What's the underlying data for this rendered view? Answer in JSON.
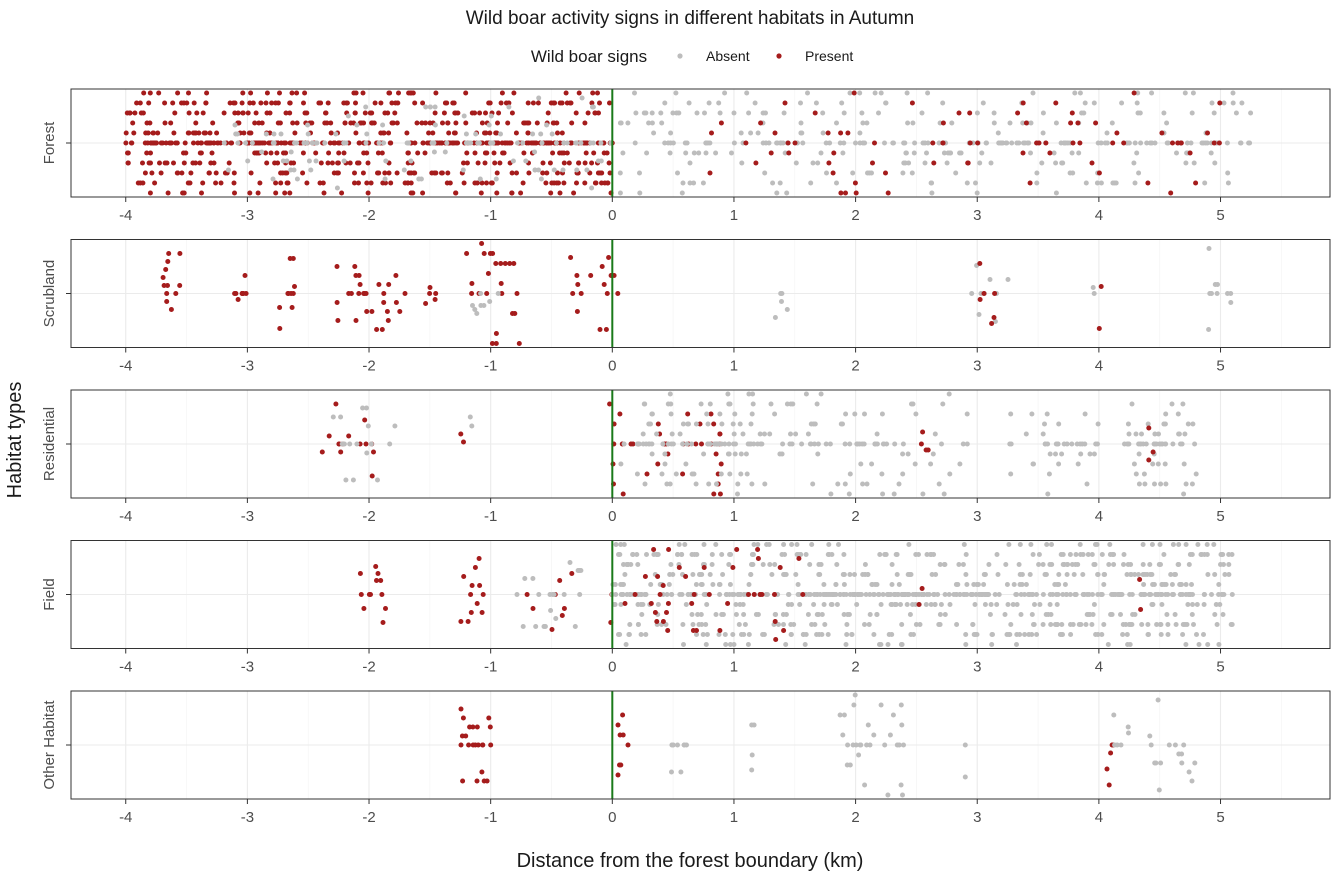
{
  "chart_data": {
    "type": "scatter",
    "subtype": "facetted beeswarm / jittered strip plot",
    "title": "Wild boar activity signs in different habitats in Autumn",
    "xlabel": "Distance from the forest boundary (km)",
    "ylabel": "Habitat types",
    "xlim": [
      -4.45,
      5.9
    ],
    "x_ticks": [
      -4,
      -3,
      -2,
      -1,
      0,
      1,
      2,
      3,
      4,
      5
    ],
    "x_tick_labels": [
      "-4",
      "-3",
      "-2",
      "-1",
      "0",
      "1",
      "2",
      "3",
      "4",
      "5"
    ],
    "reference_line": {
      "x": 0,
      "color": "#1a7a1a"
    },
    "grid": true,
    "legend": {
      "title": "Wild boar signs",
      "position": "top",
      "entries": [
        {
          "label": "Absent",
          "color": "#bdbdbd"
        },
        {
          "label": "Present",
          "color": "#a51c1c"
        }
      ]
    },
    "facets": [
      {
        "label": "Forest",
        "groups": [
          {
            "status": "Present",
            "x_range": [
              -4.0,
              0.0
            ],
            "count": 700,
            "spread": 0.5
          },
          {
            "status": "Absent",
            "x_range": [
              -3.2,
              0.0
            ],
            "count": 120,
            "spread": 0.45
          },
          {
            "status": "Absent",
            "x_range": [
              0.05,
              5.25
            ],
            "count": 320,
            "spread": 0.5
          },
          {
            "status": "Present",
            "x_range": [
              0.8,
              5.0
            ],
            "count": 75,
            "spread": 0.5
          }
        ]
      },
      {
        "label": "Scrubland",
        "groups": [
          {
            "status": "Present",
            "x_range": [
              -3.7,
              -3.55
            ],
            "count": 12,
            "spread": 0.4
          },
          {
            "status": "Present",
            "x_range": [
              -3.12,
              -2.98
            ],
            "count": 8,
            "spread": 0.3
          },
          {
            "status": "Present",
            "x_range": [
              -2.75,
              -2.6
            ],
            "count": 10,
            "spread": 0.35
          },
          {
            "status": "Present",
            "x_range": [
              -2.3,
              -1.7
            ],
            "count": 28,
            "spread": 0.45
          },
          {
            "status": "Present",
            "x_range": [
              -1.55,
              -1.45
            ],
            "count": 5,
            "spread": 0.1
          },
          {
            "status": "Present",
            "x_range": [
              -1.2,
              -0.75
            ],
            "count": 24,
            "spread": 0.5
          },
          {
            "status": "Absent",
            "x_range": [
              -1.2,
              -0.9
            ],
            "count": 8,
            "spread": 0.2
          },
          {
            "status": "Present",
            "x_range": [
              -0.38,
              0.05
            ],
            "count": 16,
            "spread": 0.45
          },
          {
            "status": "Absent",
            "x_range": [
              1.33,
              1.45
            ],
            "count": 5,
            "spread": 0.4
          },
          {
            "status": "Absent",
            "x_range": [
              2.95,
              3.3
            ],
            "count": 9,
            "spread": 0.35
          },
          {
            "status": "Present",
            "x_range": [
              3.02,
              3.15
            ],
            "count": 6,
            "spread": 0.3
          },
          {
            "status": "Present",
            "x_range": [
              4.0,
              4.02
            ],
            "count": 2,
            "spread": 0.35
          },
          {
            "status": "Absent",
            "x_range": [
              3.95,
              4.0
            ],
            "count": 2,
            "spread": 0.3
          },
          {
            "status": "Absent",
            "x_range": [
              4.85,
              5.1
            ],
            "count": 10,
            "spread": 0.45
          }
        ]
      },
      {
        "label": "Residential",
        "groups": [
          {
            "status": "Present",
            "x_range": [
              -2.4,
              -1.95
            ],
            "count": 14,
            "spread": 0.4
          },
          {
            "status": "Absent",
            "x_range": [
              -2.3,
              -1.75
            ],
            "count": 16,
            "spread": 0.45
          },
          {
            "status": "Present",
            "x_range": [
              -1.25,
              -1.22
            ],
            "count": 2,
            "spread": 0.1
          },
          {
            "status": "Absent",
            "x_range": [
              -1.22,
              -1.15
            ],
            "count": 2,
            "spread": 0.45
          },
          {
            "status": "Present",
            "x_range": [
              -0.05,
              0.9
            ],
            "count": 40,
            "spread": 0.5
          },
          {
            "status": "Absent",
            "x_range": [
              0.05,
              2.95
            ],
            "count": 190,
            "spread": 0.5
          },
          {
            "status": "Present",
            "x_range": [
              2.5,
              2.6
            ],
            "count": 4,
            "spread": 0.3
          },
          {
            "status": "Absent",
            "x_range": [
              3.25,
              4.0
            ],
            "count": 40,
            "spread": 0.5
          },
          {
            "status": "Absent",
            "x_range": [
              4.2,
              4.8
            ],
            "count": 60,
            "spread": 0.5
          },
          {
            "status": "Present",
            "x_range": [
              4.4,
              4.45
            ],
            "count": 3,
            "spread": 0.4
          }
        ]
      },
      {
        "label": "Field",
        "groups": [
          {
            "status": "Present",
            "x_range": [
              -2.1,
              -1.85
            ],
            "count": 12,
            "spread": 0.35
          },
          {
            "status": "Present",
            "x_range": [
              -1.25,
              -1.05
            ],
            "count": 12,
            "spread": 0.45
          },
          {
            "status": "Present",
            "x_range": [
              -0.8,
              -0.3
            ],
            "count": 8,
            "spread": 0.35
          },
          {
            "status": "Absent",
            "x_range": [
              -0.8,
              -0.25
            ],
            "count": 20,
            "spread": 0.4
          },
          {
            "status": "Present",
            "x_range": [
              -0.03,
              0.0
            ],
            "count": 2,
            "spread": 0.35
          },
          {
            "status": "Absent",
            "x_range": [
              0.0,
              5.1
            ],
            "count": 820,
            "spread": 0.5
          },
          {
            "status": "Present",
            "x_range": [
              0.1,
              1.6
            ],
            "count": 40,
            "spread": 0.45
          },
          {
            "status": "Present",
            "x_range": [
              2.5,
              2.55
            ],
            "count": 2,
            "spread": 0.1
          },
          {
            "status": "Present",
            "x_range": [
              4.3,
              4.35
            ],
            "count": 2,
            "spread": 0.25
          }
        ]
      },
      {
        "label": "Other Habitat",
        "groups": [
          {
            "status": "Present",
            "x_range": [
              -1.25,
              -0.98
            ],
            "count": 22,
            "spread": 0.45
          },
          {
            "status": "Present",
            "x_range": [
              0.03,
              0.15
            ],
            "count": 8,
            "spread": 0.5
          },
          {
            "status": "Absent",
            "x_range": [
              0.45,
              0.62
            ],
            "count": 9,
            "spread": 0.45
          },
          {
            "status": "Absent",
            "x_range": [
              1.1,
              1.18
            ],
            "count": 4,
            "spread": 0.25
          },
          {
            "status": "Absent",
            "x_range": [
              1.8,
              2.4
            ],
            "count": 30,
            "spread": 0.5
          },
          {
            "status": "Absent",
            "x_range": [
              2.9,
              2.92
            ],
            "count": 2,
            "spread": 0.4
          },
          {
            "status": "Present",
            "x_range": [
              4.05,
              4.12
            ],
            "count": 5,
            "spread": 0.4
          },
          {
            "status": "Absent",
            "x_range": [
              4.1,
              4.25
            ],
            "count": 6,
            "spread": 0.3
          },
          {
            "status": "Absent",
            "x_range": [
              4.4,
              4.8
            ],
            "count": 16,
            "spread": 0.45
          }
        ]
      }
    ]
  }
}
